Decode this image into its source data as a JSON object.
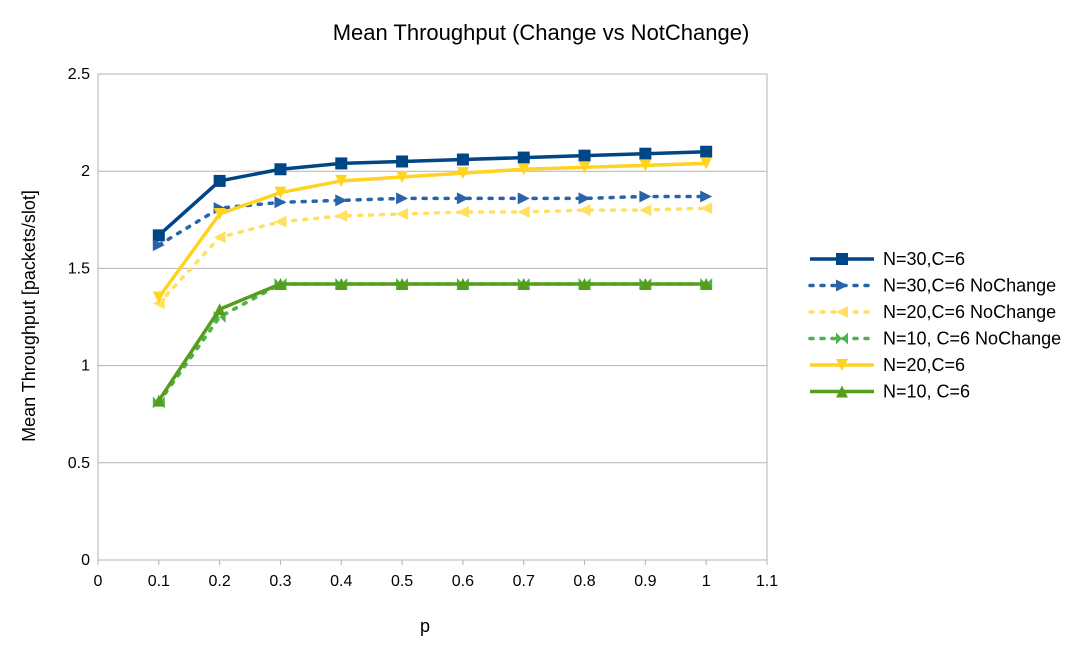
{
  "chart_data": {
    "type": "line",
    "title": "Mean Throughput (Change vs NotChange)",
    "xlabel": "p",
    "ylabel": "Mean Throughput [packets/slot]",
    "xlim": [
      0,
      1.1
    ],
    "ylim": [
      0,
      2.5
    ],
    "xticks": [
      0,
      0.1,
      0.2,
      0.3,
      0.4,
      0.5,
      0.6,
      0.7,
      0.8,
      0.9,
      1,
      1.1
    ],
    "yticks": [
      0,
      0.5,
      1,
      1.5,
      2,
      2.5
    ],
    "x_tick_labels": [
      "0",
      "0.1",
      "0.2",
      "0.3",
      "0.4",
      "0.5",
      "0.6",
      "0.7",
      "0.8",
      "0.9",
      "1",
      "1.1"
    ],
    "y_tick_labels": [
      "0",
      "0.5",
      "1",
      "1.5",
      "2",
      "2.5"
    ],
    "grid": "horizontal",
    "legend_position": "right",
    "x": [
      0.1,
      0.2,
      0.3,
      0.4,
      0.5,
      0.6,
      0.7,
      0.8,
      0.9,
      1.0
    ],
    "series": [
      {
        "name": "N=30,C=6",
        "color": "#004586",
        "dash": "solid",
        "marker": "square",
        "values": [
          1.67,
          1.95,
          2.01,
          2.04,
          2.05,
          2.06,
          2.07,
          2.08,
          2.09,
          2.1
        ]
      },
      {
        "name": "N=30,C=6 NoChange",
        "color": "#2a64a8",
        "dash": "dotted",
        "marker": "triangle-right",
        "values": [
          1.62,
          1.81,
          1.84,
          1.85,
          1.86,
          1.86,
          1.86,
          1.86,
          1.87,
          1.87
        ]
      },
      {
        "name": "N=20,C=6 NoChange",
        "color": "#ffe060",
        "dash": "dotted",
        "marker": "triangle-left",
        "values": [
          1.32,
          1.66,
          1.74,
          1.77,
          1.78,
          1.79,
          1.79,
          1.8,
          1.8,
          1.81
        ]
      },
      {
        "name": "N=10, C=6 NoChange",
        "color": "#4ab34a",
        "dash": "dotted",
        "marker": "bowtie",
        "values": [
          0.81,
          1.25,
          1.42,
          1.42,
          1.42,
          1.42,
          1.42,
          1.42,
          1.42,
          1.42
        ]
      },
      {
        "name": "N=20,C=6",
        "color": "#ffd320",
        "dash": "solid",
        "marker": "triangle-down",
        "values": [
          1.35,
          1.78,
          1.89,
          1.95,
          1.97,
          1.99,
          2.01,
          2.02,
          2.03,
          2.04
        ]
      },
      {
        "name": "N=10, C=6",
        "color": "#579d1c",
        "dash": "solid",
        "marker": "triangle-up",
        "values": [
          0.82,
          1.29,
          1.42,
          1.42,
          1.42,
          1.42,
          1.42,
          1.42,
          1.42,
          1.42
        ]
      }
    ]
  }
}
